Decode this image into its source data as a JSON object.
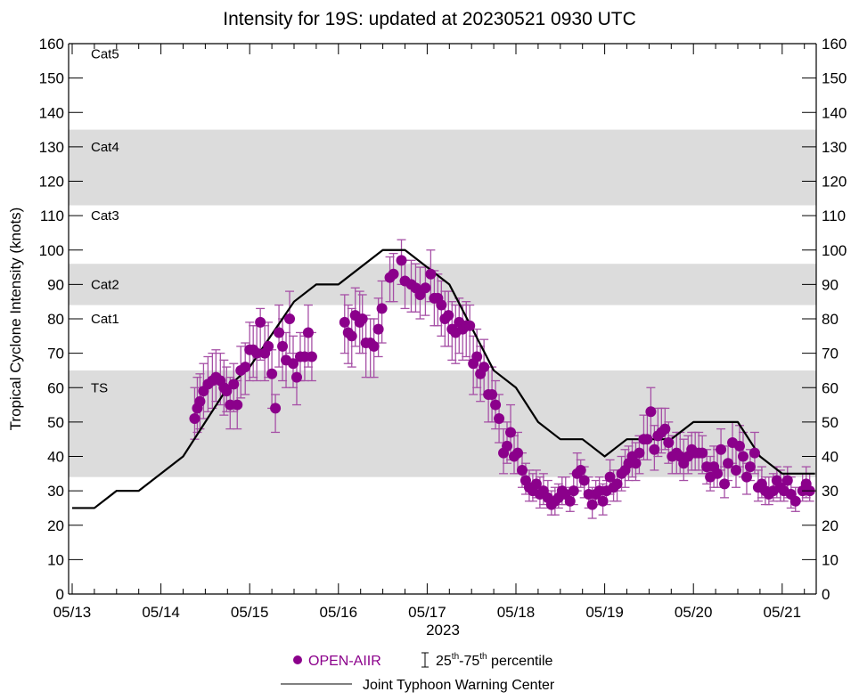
{
  "chart_data": {
    "type": "scatter",
    "title": "Intensity for 19S: updated at 20230521 0930 UTC",
    "xlabel": "2023",
    "ylabel": "Tropical Cyclone Intensity (knots)",
    "ylim": [
      0,
      160
    ],
    "yticks": [
      0,
      10,
      20,
      30,
      40,
      50,
      60,
      70,
      80,
      90,
      100,
      110,
      120,
      130,
      140,
      150,
      160
    ],
    "xlim_days": [
      -0.04,
      8.38
    ],
    "x_unit": "days since 2023-05-13 00 UTC",
    "xtick_labels": [
      {
        "day": 0,
        "label": "05/13"
      },
      {
        "day": 1,
        "label": "05/14"
      },
      {
        "day": 2,
        "label": "05/15"
      },
      {
        "day": 3,
        "label": "05/16"
      },
      {
        "day": 4,
        "label": "05/17"
      },
      {
        "day": 5,
        "label": "05/18"
      },
      {
        "day": 6,
        "label": "05/19"
      },
      {
        "day": 7,
        "label": "05/20"
      },
      {
        "day": 8,
        "label": "05/21"
      }
    ],
    "minor_tick_step_days": 0.25,
    "grid": false,
    "category_bands": [
      {
        "label": "TS",
        "from": 34,
        "to": 65,
        "shaded": true,
        "label_value": 60
      },
      {
        "label": "Cat1",
        "from": 65,
        "to": 84,
        "shaded": false,
        "label_value": 80
      },
      {
        "label": "Cat2",
        "from": 84,
        "to": 96,
        "shaded": true,
        "label_value": 90
      },
      {
        "label": "Cat3",
        "from": 96,
        "to": 113,
        "shaded": false,
        "label_value": 110
      },
      {
        "label": "Cat4",
        "from": 113,
        "to": 135,
        "shaded": true,
        "label_value": 130
      },
      {
        "label": "Cat5",
        "from": 135,
        "to": 160,
        "shaded": false,
        "label_value": 157
      }
    ],
    "colors": {
      "band": "#dcdcdc",
      "open_aiir": "#8b008b",
      "error_bar": "#a650a6",
      "jtwc": "#000000"
    },
    "series": [
      {
        "name": "Joint Typhoon Warning Center",
        "kind": "line",
        "points": [
          [
            0.0,
            25
          ],
          [
            0.25,
            25
          ],
          [
            0.5,
            30
          ],
          [
            0.75,
            30
          ],
          [
            1.25,
            40
          ],
          [
            1.75,
            60
          ],
          [
            2.0,
            66
          ],
          [
            2.5,
            85
          ],
          [
            2.75,
            90
          ],
          [
            3.0,
            90
          ],
          [
            3.5,
            100
          ],
          [
            3.75,
            100
          ],
          [
            4.25,
            90
          ],
          [
            4.75,
            65
          ],
          [
            5.0,
            60
          ],
          [
            5.25,
            50
          ],
          [
            5.5,
            45
          ],
          [
            5.75,
            45
          ],
          [
            6.0,
            40
          ],
          [
            6.25,
            45
          ],
          [
            6.75,
            45
          ],
          [
            7.0,
            50
          ],
          [
            7.5,
            50
          ],
          [
            7.75,
            40
          ],
          [
            8.0,
            35
          ],
          [
            8.37,
            35
          ]
        ]
      },
      {
        "name": "OPEN-AIIR",
        "kind": "scatter_with_error",
        "error_label": "25th-75th percentile",
        "points": [
          [
            1.38,
            51,
            45,
            60
          ],
          [
            1.41,
            54,
            47,
            63
          ],
          [
            1.44,
            56,
            48,
            64
          ],
          [
            1.48,
            59,
            51,
            67
          ],
          [
            1.53,
            61,
            53,
            69
          ],
          [
            1.58,
            62,
            54,
            70
          ],
          [
            1.62,
            63,
            56,
            71
          ],
          [
            1.67,
            62,
            55,
            70
          ],
          [
            1.71,
            60,
            52,
            68
          ],
          [
            1.74,
            59,
            53,
            66
          ],
          [
            1.78,
            55,
            48,
            63
          ],
          [
            1.82,
            61,
            53,
            67
          ],
          [
            1.86,
            55,
            48,
            62
          ],
          [
            1.9,
            65,
            57,
            72
          ],
          [
            1.95,
            66,
            58,
            73
          ],
          [
            2.0,
            71,
            62,
            79
          ],
          [
            2.04,
            71,
            63,
            78
          ],
          [
            2.08,
            70,
            62,
            78
          ],
          [
            2.12,
            79,
            68,
            83
          ],
          [
            2.17,
            70,
            62,
            78
          ],
          [
            2.21,
            72,
            63,
            79
          ],
          [
            2.25,
            64,
            54,
            71
          ],
          [
            2.29,
            54,
            47,
            58
          ],
          [
            2.33,
            76,
            66,
            84
          ],
          [
            2.37,
            72,
            62,
            80
          ],
          [
            2.41,
            68,
            60,
            76
          ],
          [
            2.45,
            80,
            70,
            88
          ],
          [
            2.49,
            67,
            60,
            75
          ],
          [
            2.53,
            63,
            55,
            70
          ],
          [
            2.57,
            69,
            62,
            76
          ],
          [
            2.62,
            69,
            62,
            75
          ],
          [
            2.66,
            76,
            66,
            84
          ],
          [
            2.7,
            69,
            62,
            76
          ],
          [
            3.07,
            79,
            70,
            87
          ],
          [
            3.11,
            76,
            67,
            84
          ],
          [
            3.15,
            75,
            66,
            83
          ],
          [
            3.19,
            81,
            72,
            89
          ],
          [
            3.24,
            79,
            70,
            88
          ],
          [
            3.27,
            80,
            70,
            87
          ],
          [
            3.31,
            73,
            63,
            81
          ],
          [
            3.36,
            73,
            63,
            80
          ],
          [
            3.4,
            72,
            63,
            80
          ],
          [
            3.45,
            77,
            69,
            86
          ],
          [
            3.49,
            83,
            73,
            91
          ],
          [
            3.58,
            92,
            85,
            98
          ],
          [
            3.62,
            93,
            85,
            99
          ],
          [
            3.71,
            97,
            90,
            103
          ],
          [
            3.75,
            91,
            83,
            97
          ],
          [
            3.82,
            90,
            82,
            97
          ],
          [
            3.87,
            89,
            82,
            96
          ],
          [
            3.92,
            87,
            80,
            95
          ],
          [
            3.98,
            89,
            81,
            95
          ],
          [
            4.04,
            93,
            85,
            100
          ],
          [
            4.08,
            86,
            78,
            94
          ],
          [
            4.12,
            86,
            78,
            93
          ],
          [
            4.16,
            84,
            75,
            91
          ],
          [
            4.2,
            80,
            72,
            88
          ],
          [
            4.24,
            81,
            72,
            88
          ],
          [
            4.28,
            77,
            68,
            85
          ],
          [
            4.32,
            76,
            67,
            84
          ],
          [
            4.36,
            79,
            70,
            86
          ],
          [
            4.4,
            77,
            68,
            84
          ],
          [
            4.44,
            78,
            69,
            85
          ],
          [
            4.48,
            78,
            68,
            84
          ],
          [
            4.52,
            67,
            58,
            75
          ],
          [
            4.56,
            69,
            60,
            77
          ],
          [
            4.6,
            64,
            56,
            72
          ],
          [
            4.64,
            66,
            58,
            74
          ],
          [
            4.69,
            58,
            50,
            66
          ],
          [
            4.73,
            58,
            50,
            66
          ],
          [
            4.77,
            55,
            48,
            62
          ],
          [
            4.81,
            51,
            44,
            58
          ],
          [
            4.86,
            41,
            35,
            48
          ],
          [
            4.9,
            43,
            38,
            50
          ],
          [
            4.94,
            47,
            39,
            55
          ],
          [
            4.98,
            40,
            35,
            46
          ],
          [
            5.02,
            41,
            35,
            47
          ],
          [
            5.07,
            36,
            31,
            41
          ],
          [
            5.11,
            33,
            29,
            38
          ],
          [
            5.15,
            31,
            27,
            36
          ],
          [
            5.19,
            30,
            27,
            35
          ],
          [
            5.23,
            32,
            28,
            36
          ],
          [
            5.27,
            29,
            25,
            34
          ],
          [
            5.31,
            30,
            26,
            35
          ],
          [
            5.36,
            28,
            25,
            33
          ],
          [
            5.4,
            26,
            23,
            30
          ],
          [
            5.44,
            27,
            23,
            31
          ],
          [
            5.48,
            28,
            25,
            32
          ],
          [
            5.52,
            30,
            26,
            34
          ],
          [
            5.56,
            29,
            26,
            34
          ],
          [
            5.61,
            27,
            24,
            31
          ],
          [
            5.65,
            30,
            26,
            35
          ],
          [
            5.69,
            35,
            30,
            41
          ],
          [
            5.73,
            36,
            31,
            39
          ],
          [
            5.77,
            33,
            28,
            37
          ],
          [
            5.82,
            29,
            25,
            34
          ],
          [
            5.86,
            26,
            22,
            31
          ],
          [
            5.9,
            29,
            26,
            33
          ],
          [
            5.94,
            30,
            26,
            34
          ],
          [
            5.98,
            27,
            23,
            32
          ],
          [
            6.02,
            30,
            26,
            33
          ],
          [
            6.06,
            34,
            29,
            39
          ],
          [
            6.1,
            31,
            27,
            36
          ],
          [
            6.14,
            32,
            27,
            36
          ],
          [
            6.19,
            35,
            30,
            40
          ],
          [
            6.23,
            36,
            31,
            42
          ],
          [
            6.27,
            38,
            33,
            43
          ],
          [
            6.31,
            40,
            34,
            45
          ],
          [
            6.35,
            38,
            33,
            44
          ],
          [
            6.39,
            41,
            35,
            46
          ],
          [
            6.44,
            45,
            39,
            52
          ],
          [
            6.48,
            45,
            39,
            52
          ],
          [
            6.52,
            53,
            45,
            60
          ],
          [
            6.56,
            42,
            36,
            49
          ],
          [
            6.6,
            46,
            40,
            54
          ],
          [
            6.64,
            47,
            41,
            54
          ],
          [
            6.68,
            48,
            42,
            54
          ],
          [
            6.72,
            44,
            38,
            50
          ],
          [
            6.76,
            40,
            35,
            46
          ],
          [
            6.81,
            41,
            35,
            47
          ],
          [
            6.85,
            40,
            35,
            47
          ],
          [
            6.89,
            38,
            33,
            45
          ],
          [
            6.94,
            40,
            35,
            46
          ],
          [
            6.98,
            42,
            36,
            47
          ],
          [
            7.02,
            41,
            36,
            47
          ],
          [
            7.06,
            41,
            36,
            47
          ],
          [
            7.1,
            41,
            35,
            46
          ],
          [
            7.15,
            37,
            32,
            42
          ],
          [
            7.19,
            34,
            30,
            40
          ],
          [
            7.23,
            37,
            31,
            43
          ],
          [
            7.27,
            35,
            31,
            42
          ],
          [
            7.31,
            42,
            36,
            48
          ],
          [
            7.35,
            32,
            28,
            37
          ],
          [
            7.39,
            38,
            33,
            43
          ],
          [
            7.44,
            44,
            38,
            50
          ],
          [
            7.48,
            36,
            31,
            43
          ],
          [
            7.52,
            43,
            37,
            49
          ],
          [
            7.56,
            40,
            34,
            47
          ],
          [
            7.6,
            34,
            29,
            38
          ],
          [
            7.64,
            37,
            33,
            42
          ],
          [
            7.69,
            41,
            35,
            47
          ],
          [
            7.73,
            31,
            27,
            36
          ],
          [
            7.77,
            32,
            28,
            37
          ],
          [
            7.81,
            30,
            26,
            34
          ],
          [
            7.85,
            29,
            26,
            34
          ],
          [
            7.9,
            30,
            27,
            35
          ],
          [
            7.94,
            33,
            28,
            37
          ],
          [
            7.98,
            31,
            27,
            36
          ],
          [
            8.02,
            30,
            27,
            35
          ],
          [
            8.06,
            33,
            28,
            37
          ],
          [
            8.1,
            29,
            25,
            34
          ],
          [
            8.15,
            27,
            24,
            31
          ],
          [
            8.23,
            30,
            27,
            35
          ],
          [
            8.27,
            32,
            28,
            37
          ],
          [
            8.31,
            30,
            27,
            35
          ]
        ]
      }
    ],
    "legend": {
      "placement": "bottom",
      "items": [
        {
          "label": "OPEN-AIIR",
          "symbol": "dot"
        },
        {
          "label": "25th-75th percentile",
          "symbol": "error-bar",
          "sup1": "th",
          "sup2": "th",
          "n1": "25",
          "n2": "75",
          "suffix": " percentile"
        },
        {
          "label": "Joint Typhoon Warning Center",
          "symbol": "line"
        }
      ]
    }
  }
}
